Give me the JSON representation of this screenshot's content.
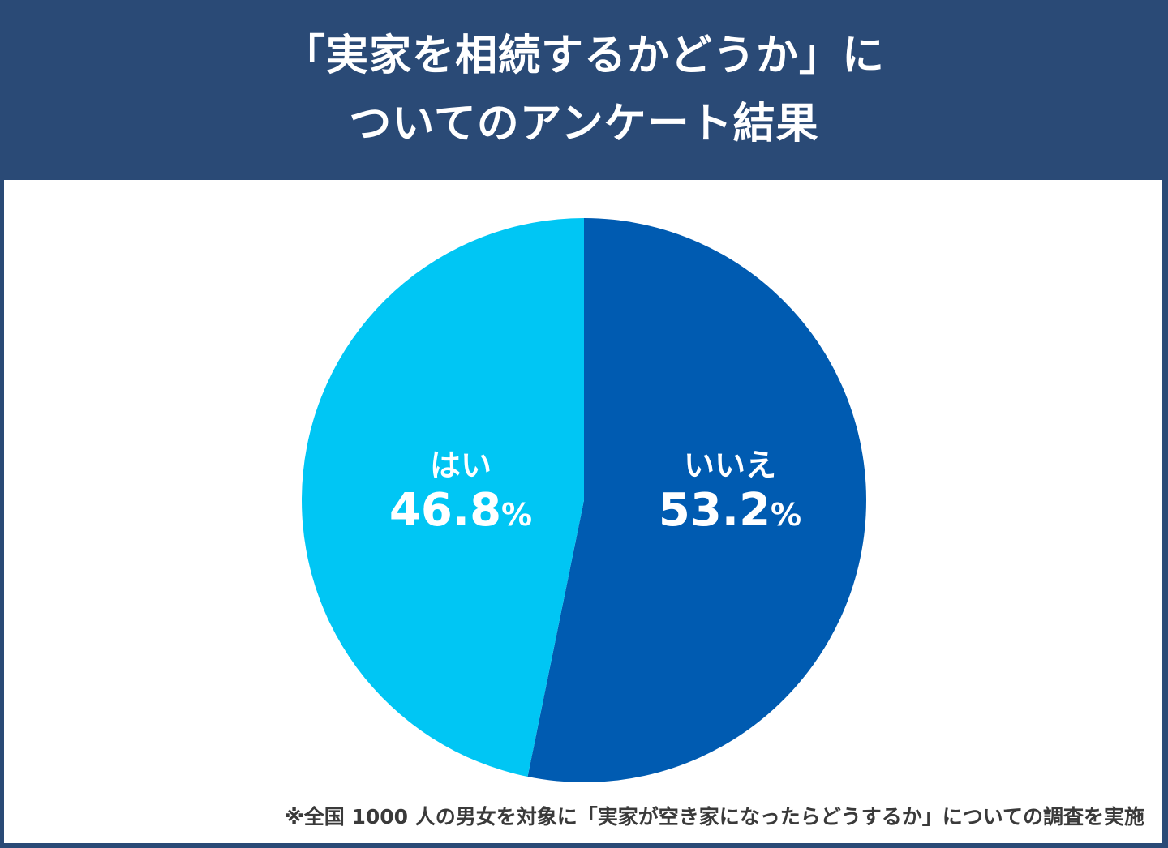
{
  "header": {
    "title_line1": "「実家を相続するかどうか」に",
    "title_line2": "ついてのアンケート結果"
  },
  "colors": {
    "frame": "#2a4a76",
    "yes": "#00c6f4",
    "no": "#005bb1",
    "label_text": "#ffffff",
    "footnote_text": "#3a3a3a"
  },
  "labels": {
    "yes": {
      "category": "はい",
      "value": "46.8",
      "unit": "%"
    },
    "no": {
      "category": "いいえ",
      "value": "53.2",
      "unit": "%"
    }
  },
  "footnote": "※全国 1000 人の男女を対象に「実家が空き家になったらどうするか」についての調査を実施",
  "chart_data": {
    "type": "pie",
    "title": "「実家を相続するかどうか」についてのアンケート結果",
    "categories": [
      "いいえ",
      "はい"
    ],
    "values": [
      53.2,
      46.8
    ],
    "unit": "%",
    "colors": [
      "#005bb1",
      "#00c6f4"
    ],
    "start_angle": "12 o'clock, clockwise",
    "legend": "none (labels inside slices)",
    "annotation": "※全国 1000 人の男女を対象に「実家が空き家になったらどうするか」についての調査を実施"
  }
}
